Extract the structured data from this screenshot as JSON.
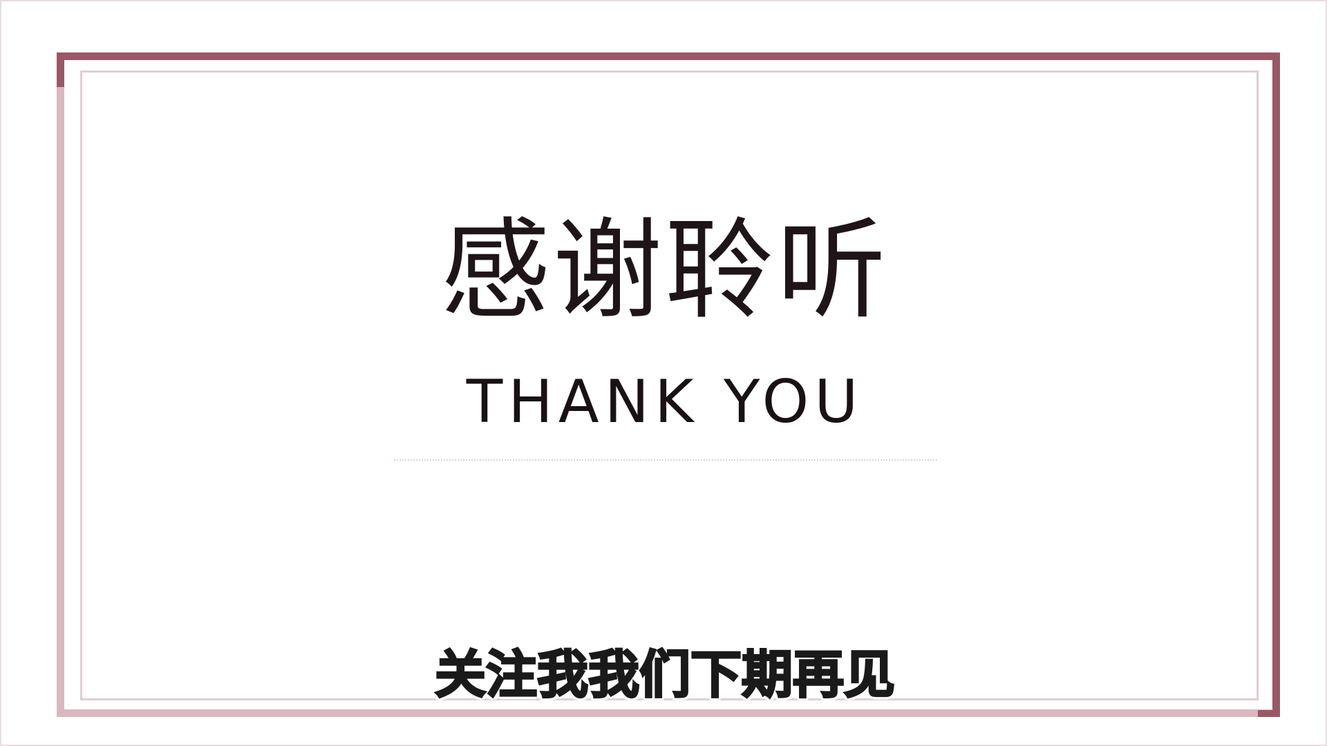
{
  "slide": {
    "title_cn": "感谢聆听",
    "title_en": "THANK YOU",
    "subtitle": "关注我我们下期再见"
  },
  "colors": {
    "frame_dark": "#9a5866",
    "frame_light": "#d9b8c0",
    "inner_frame": "#e2cdd2",
    "text": "#1f1518"
  }
}
